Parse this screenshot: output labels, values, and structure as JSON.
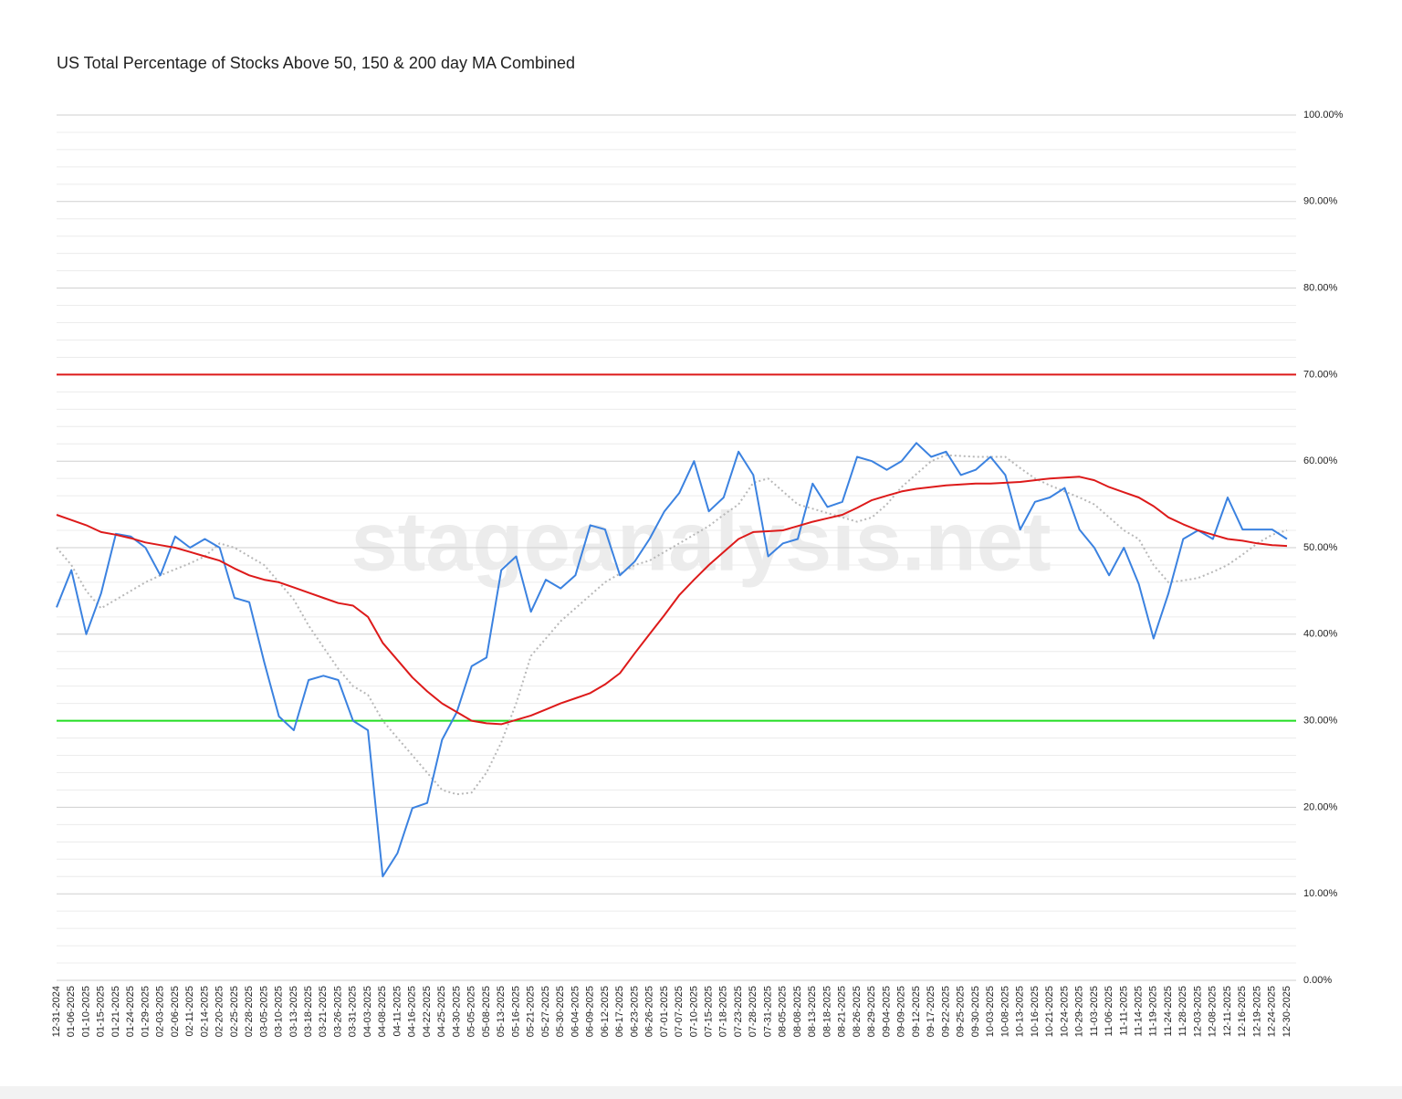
{
  "chart_data": {
    "type": "line",
    "title": "US Total Percentage of Stocks Above 50, 150 & 200 day MA Combined",
    "watermark": "stageanalysis.net",
    "categories": [
      "12-31-2024",
      "01-06-2025",
      "01-10-2025",
      "01-15-2025",
      "01-21-2025",
      "01-24-2025",
      "01-29-2025",
      "02-03-2025",
      "02-06-2025",
      "02-11-2025",
      "02-14-2025",
      "02-20-2025",
      "02-25-2025",
      "02-28-2025",
      "03-05-2025",
      "03-10-2025",
      "03-13-2025",
      "03-18-2025",
      "03-21-2025",
      "03-26-2025",
      "03-31-2025",
      "04-03-2025",
      "04-08-2025",
      "04-11-2025",
      "04-16-2025",
      "04-22-2025",
      "04-25-2025",
      "04-30-2025",
      "05-05-2025",
      "05-08-2025",
      "05-13-2025",
      "05-16-2025",
      "05-21-2025",
      "05-27-2025",
      "05-30-2025",
      "06-04-2025",
      "06-09-2025",
      "06-12-2025",
      "06-17-2025",
      "06-23-2025",
      "06-26-2025",
      "07-01-2025",
      "07-07-2025",
      "07-10-2025",
      "07-15-2025",
      "07-18-2025",
      "07-23-2025",
      "07-28-2025",
      "07-31-2025",
      "08-05-2025",
      "08-08-2025",
      "08-13-2025",
      "08-18-2025",
      "08-21-2025",
      "08-26-2025",
      "08-29-2025",
      "09-04-2025",
      "09-09-2025",
      "09-12-2025",
      "09-17-2025",
      "09-22-2025",
      "09-25-2025",
      "09-30-2025",
      "10-03-2025",
      "10-08-2025",
      "10-13-2025",
      "10-16-2025",
      "10-21-2025",
      "10-24-2025",
      "10-29-2025",
      "11-03-2025",
      "11-06-2025",
      "11-11-2025",
      "11-14-2025",
      "11-19-2025",
      "11-24-2025",
      "11-28-2025",
      "12-03-2025",
      "12-08-2025",
      "12-11-2025",
      "12-16-2025",
      "12-19-2025",
      "12-24-2025",
      "12-30-2025"
    ],
    "series": [
      {
        "color": "#b8b8b8",
        "dashed": true,
        "values": [
          50,
          48,
          45,
          43,
          44,
          45,
          46,
          46.8,
          47.5,
          48.2,
          49,
          50.5,
          50,
          49,
          48,
          46,
          44,
          41,
          38.5,
          36,
          34,
          33,
          30,
          28,
          26,
          24,
          22,
          21.5,
          21.7,
          24,
          27.5,
          32,
          37.5,
          39.5,
          41.5,
          43,
          44.5,
          46,
          47,
          48,
          48.5,
          49.5,
          50.5,
          51.5,
          52.5,
          53.8,
          55,
          57.5,
          58,
          56.5,
          55,
          54.5,
          54,
          53.5,
          53,
          53.5,
          55,
          57,
          58.5,
          60,
          60.7,
          60.6,
          60.5,
          60.5,
          60.5,
          59.2,
          58,
          57.2,
          56.5,
          55.8,
          55,
          53.5,
          52,
          51,
          48,
          46,
          46.2,
          46.5,
          47.2,
          48,
          49.2,
          50.5,
          51.5,
          52
        ]
      },
      {
        "color": "#3b82e0",
        "dashed": false,
        "values": [
          43.1,
          47.4,
          40,
          44.7,
          51.6,
          51.3,
          50,
          46.8,
          51.3,
          50,
          51,
          50,
          44.2,
          43.7,
          36.8,
          30.5,
          28.9,
          34.7,
          35.2,
          34.7,
          30,
          28.9,
          12,
          14.7,
          19.9,
          20.5,
          27.8,
          31,
          36.3,
          37.3,
          47.4,
          49,
          42.6,
          46.3,
          45.3,
          46.8,
          52.6,
          52.1,
          46.8,
          48.4,
          51,
          54.2,
          56.3,
          60,
          54.2,
          55.8,
          61.1,
          58.4,
          49,
          50.5,
          51,
          57.4,
          54.7,
          55.3,
          60.5,
          60,
          59,
          60,
          62.1,
          60.5,
          61.1,
          58.4,
          59,
          60.5,
          58.4,
          52.1,
          55.3,
          55.8,
          56.9,
          52.1,
          50,
          46.8,
          50,
          45.8,
          39.5,
          44.7,
          51,
          52,
          51,
          55.8,
          52.1,
          52.1,
          52.1,
          51
        ]
      },
      {
        "color": "#dd1a1a",
        "dashed": false,
        "values": [
          53.8,
          53.2,
          52.6,
          51.8,
          51.5,
          51.1,
          50.6,
          50.3,
          50,
          49.5,
          49,
          48.5,
          47.6,
          46.8,
          46.3,
          46,
          45.4,
          44.8,
          44.2,
          43.6,
          43.3,
          42,
          39,
          37,
          35,
          33.4,
          32,
          31,
          30,
          29.7,
          29.6,
          30.1,
          30.6,
          31.3,
          32,
          32.6,
          33.2,
          34.2,
          35.5,
          37.8,
          40,
          42.2,
          44.5,
          46.3,
          48,
          49.5,
          51,
          51.8,
          51.9,
          52,
          52.5,
          53,
          53.4,
          53.8,
          54.6,
          55.5,
          56,
          56.5,
          56.8,
          57,
          57.2,
          57.3,
          57.4,
          57.4,
          57.5,
          57.6,
          57.8,
          58,
          58.1,
          58.2,
          57.8,
          57,
          56.4,
          55.8,
          54.8,
          53.5,
          52.7,
          52,
          51.5,
          51,
          50.8,
          50.5,
          50.3,
          50.2
        ]
      }
    ],
    "reference_lines": [
      {
        "value": 70,
        "color": "#dd1a1a"
      },
      {
        "value": 30,
        "color": "#22dd22"
      }
    ],
    "ylim": [
      0,
      100
    ],
    "yticks": [
      {
        "value": 0,
        "label": "0.00%"
      },
      {
        "value": 10,
        "label": "10.00%"
      },
      {
        "value": 20,
        "label": "20.00%"
      },
      {
        "value": 30,
        "label": "30.00%"
      },
      {
        "value": 40,
        "label": "40.00%"
      },
      {
        "value": 50,
        "label": "50.00%"
      },
      {
        "value": 60,
        "label": "60.00%"
      },
      {
        "value": 70,
        "label": "70.00%"
      },
      {
        "value": 80,
        "label": "80.00%"
      },
      {
        "value": 90,
        "label": "90.00%"
      },
      {
        "value": 100,
        "label": "100.00%"
      }
    ],
    "minor_yticks": [
      2,
      4,
      6,
      8,
      12,
      14,
      16,
      18,
      22,
      24,
      26,
      28,
      32,
      34,
      36,
      38,
      42,
      44,
      46,
      48,
      52,
      54,
      56,
      58,
      62,
      64,
      66,
      68,
      72,
      74,
      76,
      78,
      82,
      84,
      86,
      88,
      92,
      94,
      96,
      98
    ],
    "grid": true
  }
}
